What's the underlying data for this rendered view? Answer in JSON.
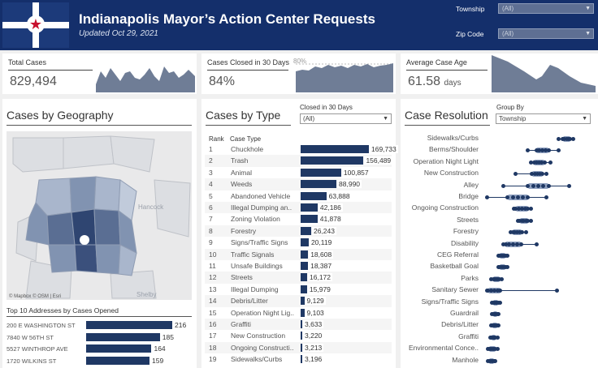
{
  "header": {
    "title": "Indianapolis Mayor’s Action Center Requests",
    "subtitle": "Updated Oct 29, 2021",
    "township_label": "Township",
    "township_value": "(All)",
    "zip_label": "Zip Code",
    "zip_value": "(All)"
  },
  "kpis": {
    "total_cases_label": "Total Cases",
    "total_cases_value": "829,494",
    "closed_label": "Cases Closed in 30 Days",
    "closed_value": "84%",
    "closed_ref": "80%",
    "age_label": "Average Case Age",
    "age_value": "61.58",
    "age_unit": "days"
  },
  "geography": {
    "title": "Cases by Geography",
    "map_labels": [
      "Hancock",
      "Shelby"
    ],
    "attribution": "© Mapbox  © OSM | Esri",
    "top_title": "Top 10 Addresses by Cases Opened",
    "addresses": [
      {
        "name": "200 E WASHINGTON ST",
        "value": 216
      },
      {
        "name": "7840 W 56TH ST",
        "value": 185
      },
      {
        "name": "5527 WINTHROP AVE",
        "value": 164
      },
      {
        "name": "1720 WILKINS ST",
        "value": 159
      }
    ]
  },
  "types": {
    "title": "Cases by Type",
    "filter_label": "Closed in 30 Days",
    "filter_value": "(All)",
    "col_rank": "Rank",
    "col_type": "Case Type",
    "rows": [
      {
        "rank": "1",
        "name": "Chuckhole",
        "value": 169733,
        "label": "169,733"
      },
      {
        "rank": "2",
        "name": "Trash",
        "value": 156489,
        "label": "156,489"
      },
      {
        "rank": "3",
        "name": "Animal",
        "value": 100857,
        "label": "100,857"
      },
      {
        "rank": "4",
        "name": "Weeds",
        "value": 88990,
        "label": "88,990"
      },
      {
        "rank": "5",
        "name": "Abandoned Vehicle",
        "value": 63888,
        "label": "63,888"
      },
      {
        "rank": "6",
        "name": "Illegal Dumping an..",
        "value": 42186,
        "label": "42,186"
      },
      {
        "rank": "7",
        "name": "Zoning Violation",
        "value": 41878,
        "label": "41,878"
      },
      {
        "rank": "8",
        "name": "Forestry",
        "value": 26243,
        "label": "26,243"
      },
      {
        "rank": "9",
        "name": "Signs/Traffic Signs",
        "value": 20119,
        "label": "20,119"
      },
      {
        "rank": "10",
        "name": "Traffic Signals",
        "value": 18608,
        "label": "18,608"
      },
      {
        "rank": "11",
        "name": "Unsafe Buildings",
        "value": 18387,
        "label": "18,387"
      },
      {
        "rank": "12",
        "name": "Streets",
        "value": 16172,
        "label": "16,172"
      },
      {
        "rank": "13",
        "name": "Illegal Dumping",
        "value": 15979,
        "label": "15,979"
      },
      {
        "rank": "14",
        "name": "Debris/Litter",
        "value": 9129,
        "label": "9,129"
      },
      {
        "rank": "15",
        "name": "Operation Night Lig..",
        "value": 9103,
        "label": "9,103"
      },
      {
        "rank": "16",
        "name": "Graffiti",
        "value": 3633,
        "label": "3,633"
      },
      {
        "rank": "17",
        "name": "New Construction",
        "value": 3220,
        "label": "3,220"
      },
      {
        "rank": "18",
        "name": "Ongoing Constructi..",
        "value": 3213,
        "label": "3,213"
      },
      {
        "rank": "19",
        "name": "Sidewalks/Curbs",
        "value": 3196,
        "label": "3,196"
      }
    ]
  },
  "resolution": {
    "title": "Case Resolution",
    "group_label": "Group By",
    "group_value": "Township",
    "rows": [
      {
        "name": "Sidewalks/Curbs",
        "min": 0.72,
        "max": 0.86,
        "lo": 0.76,
        "hi": 0.83
      },
      {
        "name": "Berms/Shoulder",
        "min": 0.42,
        "max": 0.72,
        "lo": 0.5,
        "hi": 0.62
      },
      {
        "name": "Operation Night Light",
        "min": 0.45,
        "max": 0.64,
        "lo": 0.48,
        "hi": 0.58
      },
      {
        "name": "New Construction",
        "min": 0.3,
        "max": 0.6,
        "lo": 0.46,
        "hi": 0.56
      },
      {
        "name": "Alley",
        "min": 0.18,
        "max": 0.82,
        "lo": 0.42,
        "hi": 0.62
      },
      {
        "name": "Bridge",
        "min": 0.02,
        "max": 0.6,
        "lo": 0.22,
        "hi": 0.42
      },
      {
        "name": "Ongoing Construction",
        "min": 0.28,
        "max": 0.45,
        "lo": 0.3,
        "hi": 0.42
      },
      {
        "name": "Streets",
        "min": 0.32,
        "max": 0.45,
        "lo": 0.34,
        "hi": 0.42
      },
      {
        "name": "Forestry",
        "min": 0.25,
        "max": 0.4,
        "lo": 0.27,
        "hi": 0.36
      },
      {
        "name": "Disability",
        "min": 0.18,
        "max": 0.5,
        "lo": 0.2,
        "hi": 0.35
      },
      {
        "name": "CEG Referral",
        "min": 0.13,
        "max": 0.22,
        "lo": 0.14,
        "hi": 0.2
      },
      {
        "name": "Basketball Goal",
        "min": 0.13,
        "max": 0.22,
        "lo": 0.14,
        "hi": 0.2
      },
      {
        "name": "Parks",
        "min": 0.06,
        "max": 0.16,
        "lo": 0.08,
        "hi": 0.14
      },
      {
        "name": "Sanitary Sewer",
        "min": 0.02,
        "max": 0.7,
        "lo": 0.03,
        "hi": 0.15
      },
      {
        "name": "Signs/Traffic Signs",
        "min": 0.07,
        "max": 0.15,
        "lo": 0.08,
        "hi": 0.13
      },
      {
        "name": "Guardrail",
        "min": 0.07,
        "max": 0.13,
        "lo": 0.08,
        "hi": 0.12
      },
      {
        "name": "Debris/Litter",
        "min": 0.06,
        "max": 0.13,
        "lo": 0.07,
        "hi": 0.12
      },
      {
        "name": "Graffiti",
        "min": 0.05,
        "max": 0.12,
        "lo": 0.06,
        "hi": 0.1
      },
      {
        "name": "Environmental Conce..",
        "min": 0.03,
        "max": 0.12,
        "lo": 0.04,
        "hi": 0.1
      },
      {
        "name": "Manhole",
        "min": 0.03,
        "max": 0.1,
        "lo": 0.04,
        "hi": 0.09
      }
    ]
  },
  "colors": {
    "header_bg": "#142f6b",
    "bar": "#1f3864",
    "area": "#6f7d96",
    "star": "#c8102e"
  }
}
